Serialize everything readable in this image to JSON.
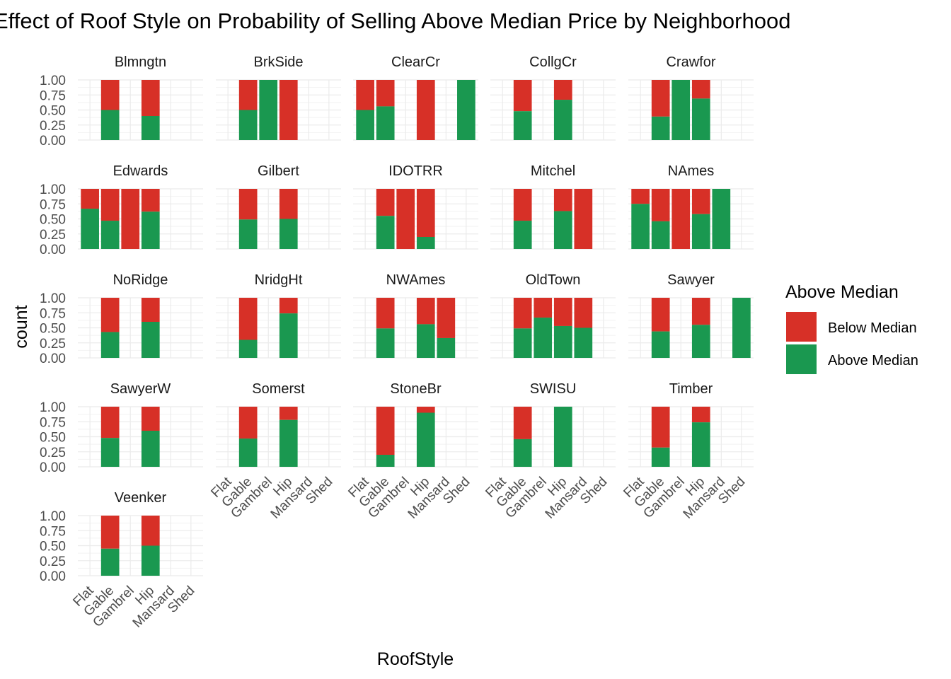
{
  "chart_data": {
    "type": "bar",
    "stacked": true,
    "proportional": true,
    "title": "Effect of Roof Style on Probability of Selling Above Median Price by Neighborhood",
    "xlabel": "RoofStyle",
    "ylabel": "count",
    "ylim": [
      0,
      1
    ],
    "yticks": [
      "0.00",
      "0.25",
      "0.50",
      "0.75",
      "1.00"
    ],
    "categories": [
      "Flat",
      "Gable",
      "Gambrel",
      "Hip",
      "Mansard",
      "Shed"
    ],
    "grid": true,
    "legend": {
      "title": "Above Median",
      "placement": "right",
      "items": [
        {
          "label": "Below Median",
          "color": "#d73027"
        },
        {
          "label": "Above Median",
          "color": "#1a9850"
        }
      ]
    },
    "panels": [
      {
        "name": "Blmngtn",
        "above": [
          null,
          0.5,
          null,
          0.4,
          null,
          null
        ]
      },
      {
        "name": "BrkSide",
        "above": [
          null,
          0.5,
          1.0,
          0.0,
          null,
          null
        ]
      },
      {
        "name": "ClearCr",
        "above": [
          0.5,
          0.56,
          null,
          0.0,
          null,
          1.0
        ]
      },
      {
        "name": "CollgCr",
        "above": [
          null,
          0.48,
          null,
          0.67,
          null,
          null
        ]
      },
      {
        "name": "Crawfor",
        "above": [
          null,
          0.39,
          1.0,
          0.69,
          null,
          null
        ]
      },
      {
        "name": "Edwards",
        "above": [
          0.67,
          0.47,
          0.0,
          0.62,
          null,
          null
        ]
      },
      {
        "name": "Gilbert",
        "above": [
          null,
          0.49,
          null,
          0.5,
          null,
          null
        ]
      },
      {
        "name": "IDOTRR",
        "above": [
          null,
          0.55,
          0.0,
          0.2,
          null,
          null
        ]
      },
      {
        "name": "Mitchel",
        "above": [
          null,
          0.47,
          null,
          0.63,
          0.0,
          null
        ]
      },
      {
        "name": "NAmes",
        "above": [
          0.75,
          0.46,
          0.0,
          0.58,
          1.0,
          null
        ]
      },
      {
        "name": "NoRidge",
        "above": [
          null,
          0.43,
          null,
          0.6,
          null,
          null
        ]
      },
      {
        "name": "NridgHt",
        "above": [
          null,
          0.3,
          null,
          0.74,
          null,
          null
        ]
      },
      {
        "name": "NWAmes",
        "above": [
          null,
          0.49,
          null,
          0.56,
          0.33,
          null
        ]
      },
      {
        "name": "OldTown",
        "above": [
          null,
          0.49,
          0.67,
          0.53,
          0.5,
          null
        ]
      },
      {
        "name": "Sawyer",
        "above": [
          null,
          0.44,
          null,
          0.55,
          null,
          1.0
        ]
      },
      {
        "name": "SawyerW",
        "above": [
          null,
          0.48,
          null,
          0.6,
          null,
          null
        ]
      },
      {
        "name": "Somerst",
        "above": [
          null,
          0.47,
          null,
          0.78,
          null,
          null
        ]
      },
      {
        "name": "StoneBr",
        "above": [
          null,
          0.2,
          null,
          0.9,
          null,
          null
        ]
      },
      {
        "name": "SWISU",
        "above": [
          null,
          0.46,
          null,
          1.0,
          null,
          null
        ]
      },
      {
        "name": "Timber",
        "above": [
          null,
          0.32,
          null,
          0.74,
          null,
          null
        ]
      },
      {
        "name": "Veenker",
        "above": [
          null,
          0.45,
          null,
          0.5,
          null,
          null
        ]
      }
    ]
  }
}
